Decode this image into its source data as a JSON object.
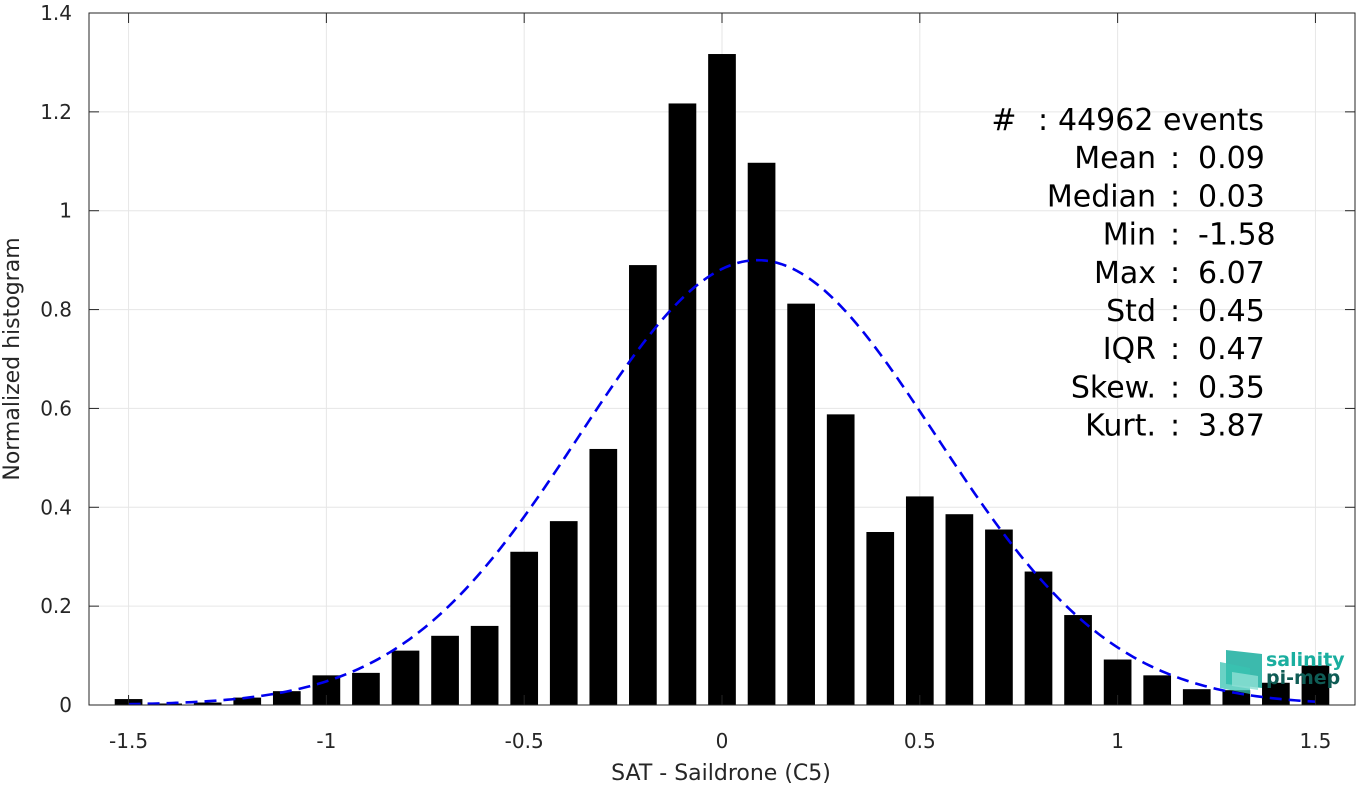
{
  "chart_data": {
    "type": "bar",
    "xlabel": "SAT - Saildrone (C5)",
    "ylabel": "Normalized histogram",
    "xlim": [
      -1.6,
      1.6
    ],
    "ylim": [
      0,
      1.4
    ],
    "xticks": [
      -1.5,
      -1,
      -0.5,
      0,
      0.5,
      1,
      1.5
    ],
    "xtick_labels": [
      "-1.5",
      "-1",
      "-0.5",
      "0",
      "0.5",
      "1",
      "1.5"
    ],
    "yticks": [
      0,
      0.2,
      0.4,
      0.6,
      0.8,
      1,
      1.2,
      1.4
    ],
    "ytick_labels": [
      "0",
      "0.2",
      "0.4",
      "0.6",
      "0.8",
      "1",
      "1.2",
      "1.4"
    ],
    "grid": true,
    "bar_color": "#000000",
    "bin_width": 0.1,
    "series": [
      {
        "x": [
          -1.5,
          -1.4,
          -1.3,
          -1.2,
          -1.1,
          -1.0,
          -0.9,
          -0.8,
          -0.7,
          -0.6,
          -0.5,
          -0.4,
          -0.3,
          -0.2,
          -0.1,
          0.0,
          0.1,
          0.2,
          0.3,
          0.4,
          0.5,
          0.6,
          0.7,
          0.8,
          0.9,
          1.0,
          1.1,
          1.2,
          1.3,
          1.4,
          1.5
        ],
        "values": [
          0.012,
          0.003,
          0.005,
          0.015,
          0.028,
          0.06,
          0.065,
          0.11,
          0.14,
          0.16,
          0.31,
          0.372,
          0.518,
          0.89,
          1.217,
          1.317,
          1.097,
          0.812,
          0.588,
          0.35,
          0.422,
          0.386,
          0.355,
          0.27,
          0.182,
          0.092,
          0.06,
          0.032,
          0.03,
          0.045,
          0.08
        ]
      }
    ],
    "fit_curve": {
      "style": "dashed",
      "color": "#0000ee",
      "mean": 0.09,
      "std": 0.45,
      "peak": 0.9
    },
    "annotations": [
      {
        "label": "#",
        "sep": ":",
        "value": "44962 events"
      },
      {
        "label": "Mean",
        "sep": ":",
        "value": "0.09"
      },
      {
        "label": "Median",
        "sep": ":",
        "value": "0.03"
      },
      {
        "label": "Min",
        "sep": ":",
        "value": "-1.58"
      },
      {
        "label": "Max",
        "sep": ":",
        "value": "6.07"
      },
      {
        "label": "Std",
        "sep": ":",
        "value": "0.45"
      },
      {
        "label": "IQR",
        "sep": ":",
        "value": "0.47"
      },
      {
        "label": "Skew.",
        "sep": ":",
        "value": "0.35"
      },
      {
        "label": "Kurt.",
        "sep": ":",
        "value": "3.87"
      }
    ]
  },
  "logo": {
    "line1": "salinity",
    "line2": "pi-mep",
    "color1": "#1aae9f",
    "color2": "#0f5c55"
  }
}
